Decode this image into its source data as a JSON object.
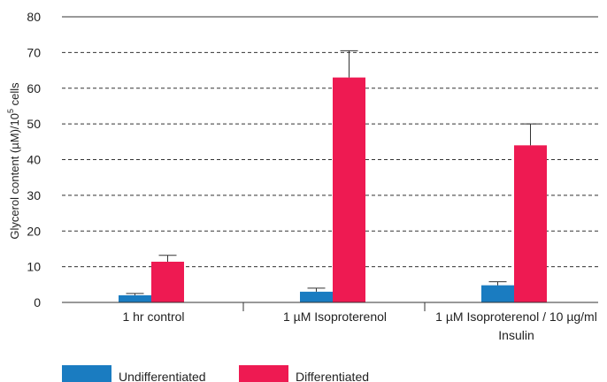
{
  "chart_data": {
    "type": "bar",
    "title": "",
    "xlabel": "",
    "ylabel": "Glycerol content (µM)/10",
    "ylabel_superscript": "5",
    "ylabel_suffix": " cells",
    "ylim": [
      0,
      80
    ],
    "yticks": [
      "0",
      "10",
      "20",
      "30",
      "40",
      "50",
      "60",
      "70",
      "80"
    ],
    "grid": "dashed horizontal",
    "legend_position": "bottom-left",
    "categories": [
      [
        "1 hr control"
      ],
      [
        "1 µM Isoproterenol"
      ],
      [
        "1 µM Isoproterenol / 10 µg/ml",
        "Insulin"
      ]
    ],
    "series": [
      {
        "name": "Undifferentiated",
        "color": "#1a7cc1",
        "values": [
          2,
          3,
          4.8
        ],
        "errors": [
          0.5,
          1,
          1
        ]
      },
      {
        "name": "Differentiated",
        "color": "#ee1a52",
        "values": [
          11.4,
          63,
          44
        ],
        "errors": [
          1.8,
          7.5,
          6
        ]
      }
    ]
  }
}
